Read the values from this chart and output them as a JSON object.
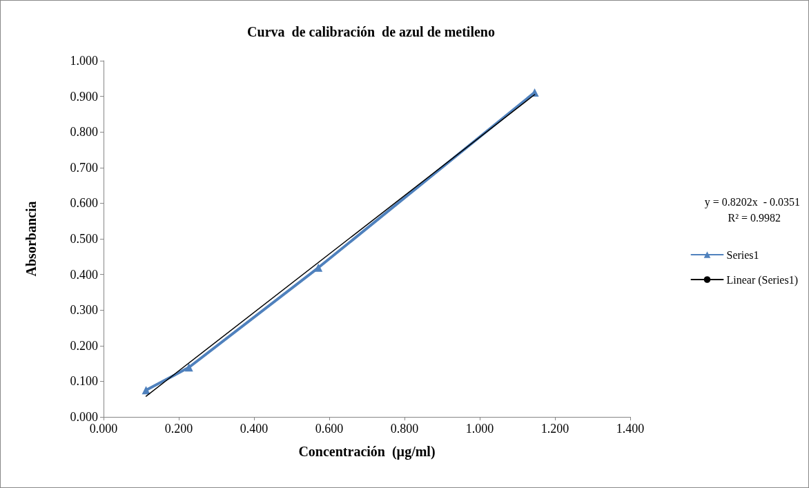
{
  "chart_data": {
    "type": "line",
    "title": "Curva  de calibración  de azul de metileno",
    "xlabel": "Concentración  (µg/ml)",
    "ylabel": "Absorbancia",
    "x": [
      0.113,
      0.227,
      0.571,
      1.146
    ],
    "series": [
      {
        "name": "Series1",
        "color": "#4f81bd",
        "values": [
          0.075,
          0.139,
          0.419,
          0.911
        ],
        "marker": "triangle"
      },
      {
        "name": "Linear (Series1)",
        "type": "line",
        "color": "#000000",
        "x": [
          0.113,
          1.146
        ],
        "values": [
          0.058,
          0.905
        ],
        "marker": "none"
      }
    ],
    "xlim": [
      0,
      1.4
    ],
    "xticks": [
      {
        "value": 0,
        "label": "0.000"
      },
      {
        "value": 0.2,
        "label": "0.200"
      },
      {
        "value": 0.4,
        "label": "0.400"
      },
      {
        "value": 0.6,
        "label": "0.600"
      },
      {
        "value": 0.8,
        "label": "0.800"
      },
      {
        "value": 1,
        "label": "1.000"
      },
      {
        "value": 1.2,
        "label": "1.200"
      },
      {
        "value": 1.4,
        "label": "1.400"
      }
    ],
    "ylim": [
      0,
      1
    ],
    "yticks": [
      {
        "value": 0,
        "label": "0.000"
      },
      {
        "value": 0.1,
        "label": "0.100"
      },
      {
        "value": 0.2,
        "label": "0.200"
      },
      {
        "value": 0.3,
        "label": "0.300"
      },
      {
        "value": 0.4,
        "label": "0.400"
      },
      {
        "value": 0.5,
        "label": "0.500"
      },
      {
        "value": 0.6,
        "label": "0.600"
      },
      {
        "value": 0.7,
        "label": "0.700"
      },
      {
        "value": 0.8,
        "label": "0.800"
      },
      {
        "value": 0.9,
        "label": "0.900"
      },
      {
        "value": 1,
        "label": "1.000"
      }
    ],
    "annotations": [
      "y = 0.8202x  - 0.0351",
      "R² = 0.9982"
    ],
    "legend": "right",
    "grid": false
  }
}
